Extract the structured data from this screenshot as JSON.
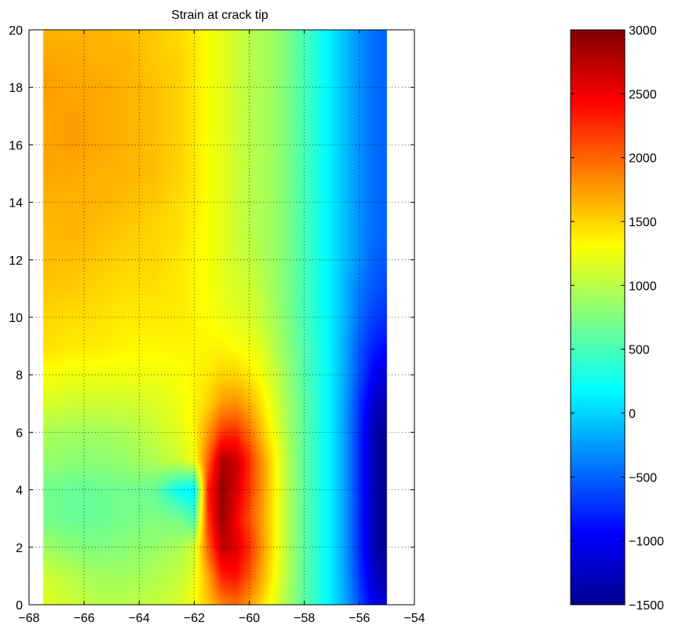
{
  "chart_data": {
    "type": "heatmap",
    "title": "Strain at crack tip",
    "xlabel": "",
    "ylabel": "",
    "xlim": [
      -68,
      -54
    ],
    "ylim": [
      0,
      20
    ],
    "x_ticks": [
      -68,
      -66,
      -64,
      -62,
      -60,
      -58,
      -56,
      -54
    ],
    "y_ticks": [
      0,
      2,
      4,
      6,
      8,
      10,
      12,
      14,
      16,
      18,
      20
    ],
    "data_extent": {
      "x": [
        -67.5,
        -55.0
      ],
      "y": [
        0,
        20
      ]
    },
    "grid": "dotted",
    "colormap": "jet",
    "colorbar": {
      "range": [
        -1500,
        3000
      ],
      "ticks": [
        -1500,
        -1000,
        -500,
        0,
        500,
        1000,
        1500,
        2000,
        2500,
        3000
      ]
    },
    "field_grid": {
      "x": [
        -67.5,
        -66.5,
        -65.5,
        -64.5,
        -63.5,
        -62.5,
        -62.0,
        -61.5,
        -61.0,
        -60.5,
        -60.0,
        -59.5,
        -59.0,
        -58.5,
        -58.0,
        -57.5,
        -57.0,
        -56.5,
        -56.0,
        -55.5,
        -55.0
      ],
      "y": [
        0,
        1,
        2,
        3,
        4,
        5,
        6,
        7,
        8,
        9,
        10,
        11,
        12,
        13,
        14,
        15,
        16,
        17,
        18,
        19,
        20
      ],
      "z": [
        [
          1200,
          1100,
          1000,
          1000,
          1050,
          1150,
          1300,
          1550,
          1850,
          1950,
          1750,
          1450,
          1150,
          850,
          600,
          350,
          100,
          -200,
          -600,
          -1000,
          -1150
        ],
        [
          1100,
          1000,
          900,
          900,
          950,
          1050,
          1200,
          1700,
          2300,
          2400,
          2050,
          1650,
          1250,
          900,
          600,
          350,
          100,
          -250,
          -700,
          -1150,
          -1350
        ],
        [
          900,
          800,
          750,
          800,
          850,
          950,
          1100,
          2000,
          2700,
          2600,
          2250,
          1750,
          1300,
          900,
          600,
          350,
          100,
          -250,
          -750,
          -1250,
          -1450
        ],
        [
          700,
          650,
          650,
          700,
          750,
          700,
          500,
          2200,
          2900,
          2500,
          2100,
          1700,
          1300,
          900,
          600,
          350,
          100,
          -250,
          -750,
          -1250,
          -1450
        ],
        [
          700,
          650,
          650,
          700,
          650,
          200,
          100,
          2300,
          2900,
          2650,
          2200,
          1750,
          1300,
          900,
          600,
          350,
          100,
          -250,
          -750,
          -1250,
          -1450
        ],
        [
          850,
          800,
          800,
          850,
          950,
          1100,
          1250,
          2000,
          2800,
          2700,
          2250,
          1750,
          1300,
          900,
          600,
          350,
          100,
          -250,
          -750,
          -1250,
          -1450
        ],
        [
          950,
          900,
          900,
          950,
          1050,
          1200,
          1350,
          1750,
          2200,
          2250,
          1950,
          1550,
          1200,
          850,
          600,
          350,
          100,
          -250,
          -750,
          -1250,
          -1450
        ],
        [
          1150,
          1100,
          1100,
          1100,
          1150,
          1250,
          1350,
          1500,
          1750,
          1800,
          1650,
          1400,
          1100,
          850,
          600,
          350,
          100,
          -250,
          -700,
          -1150,
          -1300
        ],
        [
          1300,
          1250,
          1250,
          1250,
          1250,
          1300,
          1350,
          1400,
          1500,
          1500,
          1400,
          1250,
          1050,
          800,
          550,
          350,
          100,
          -200,
          -600,
          -950,
          -1100
        ],
        [
          1450,
          1400,
          1400,
          1350,
          1350,
          1350,
          1350,
          1350,
          1350,
          1300,
          1250,
          1150,
          950,
          750,
          550,
          350,
          100,
          -200,
          -550,
          -800,
          -900
        ],
        [
          1500,
          1450,
          1450,
          1400,
          1400,
          1400,
          1350,
          1300,
          1250,
          1200,
          1150,
          1050,
          900,
          700,
          500,
          300,
          100,
          -150,
          -450,
          -650,
          -750
        ],
        [
          1550,
          1550,
          1500,
          1450,
          1450,
          1400,
          1350,
          1300,
          1200,
          1150,
          1100,
          1000,
          850,
          700,
          500,
          300,
          100,
          -150,
          -400,
          -550,
          -650
        ],
        [
          1600,
          1600,
          1550,
          1500,
          1500,
          1400,
          1350,
          1300,
          1200,
          1100,
          1050,
          950,
          850,
          700,
          500,
          300,
          100,
          -100,
          -300,
          -500,
          -550
        ],
        [
          1600,
          1650,
          1600,
          1550,
          1500,
          1450,
          1350,
          1300,
          1200,
          1100,
          1000,
          950,
          850,
          700,
          500,
          300,
          100,
          -100,
          -300,
          -450,
          -500
        ],
        [
          1650,
          1650,
          1650,
          1600,
          1550,
          1450,
          1400,
          1300,
          1200,
          1100,
          1000,
          950,
          850,
          700,
          500,
          300,
          100,
          -100,
          -300,
          -450,
          -500
        ],
        [
          1700,
          1700,
          1650,
          1650,
          1600,
          1500,
          1400,
          1300,
          1200,
          1100,
          1000,
          950,
          850,
          700,
          500,
          300,
          100,
          -100,
          -300,
          -450,
          -500
        ],
        [
          1700,
          1750,
          1700,
          1650,
          1600,
          1500,
          1400,
          1300,
          1200,
          1100,
          1000,
          950,
          850,
          700,
          500,
          300,
          100,
          -100,
          -300,
          -450,
          -500
        ],
        [
          1700,
          1750,
          1700,
          1650,
          1600,
          1500,
          1400,
          1300,
          1200,
          1100,
          1000,
          950,
          850,
          700,
          500,
          300,
          100,
          -100,
          -300,
          -450,
          -500
        ],
        [
          1750,
          1700,
          1700,
          1650,
          1600,
          1500,
          1400,
          1300,
          1200,
          1100,
          1000,
          950,
          850,
          700,
          500,
          300,
          100,
          -100,
          -300,
          -450,
          -500
        ],
        [
          1700,
          1700,
          1650,
          1650,
          1550,
          1500,
          1400,
          1300,
          1200,
          1100,
          1000,
          950,
          850,
          700,
          500,
          300,
          100,
          -100,
          -300,
          -450,
          -500
        ],
        [
          1650,
          1650,
          1650,
          1600,
          1550,
          1450,
          1400,
          1300,
          1200,
          1100,
          1000,
          950,
          850,
          700,
          500,
          300,
          100,
          -100,
          -300,
          -450,
          -500
        ]
      ]
    }
  }
}
